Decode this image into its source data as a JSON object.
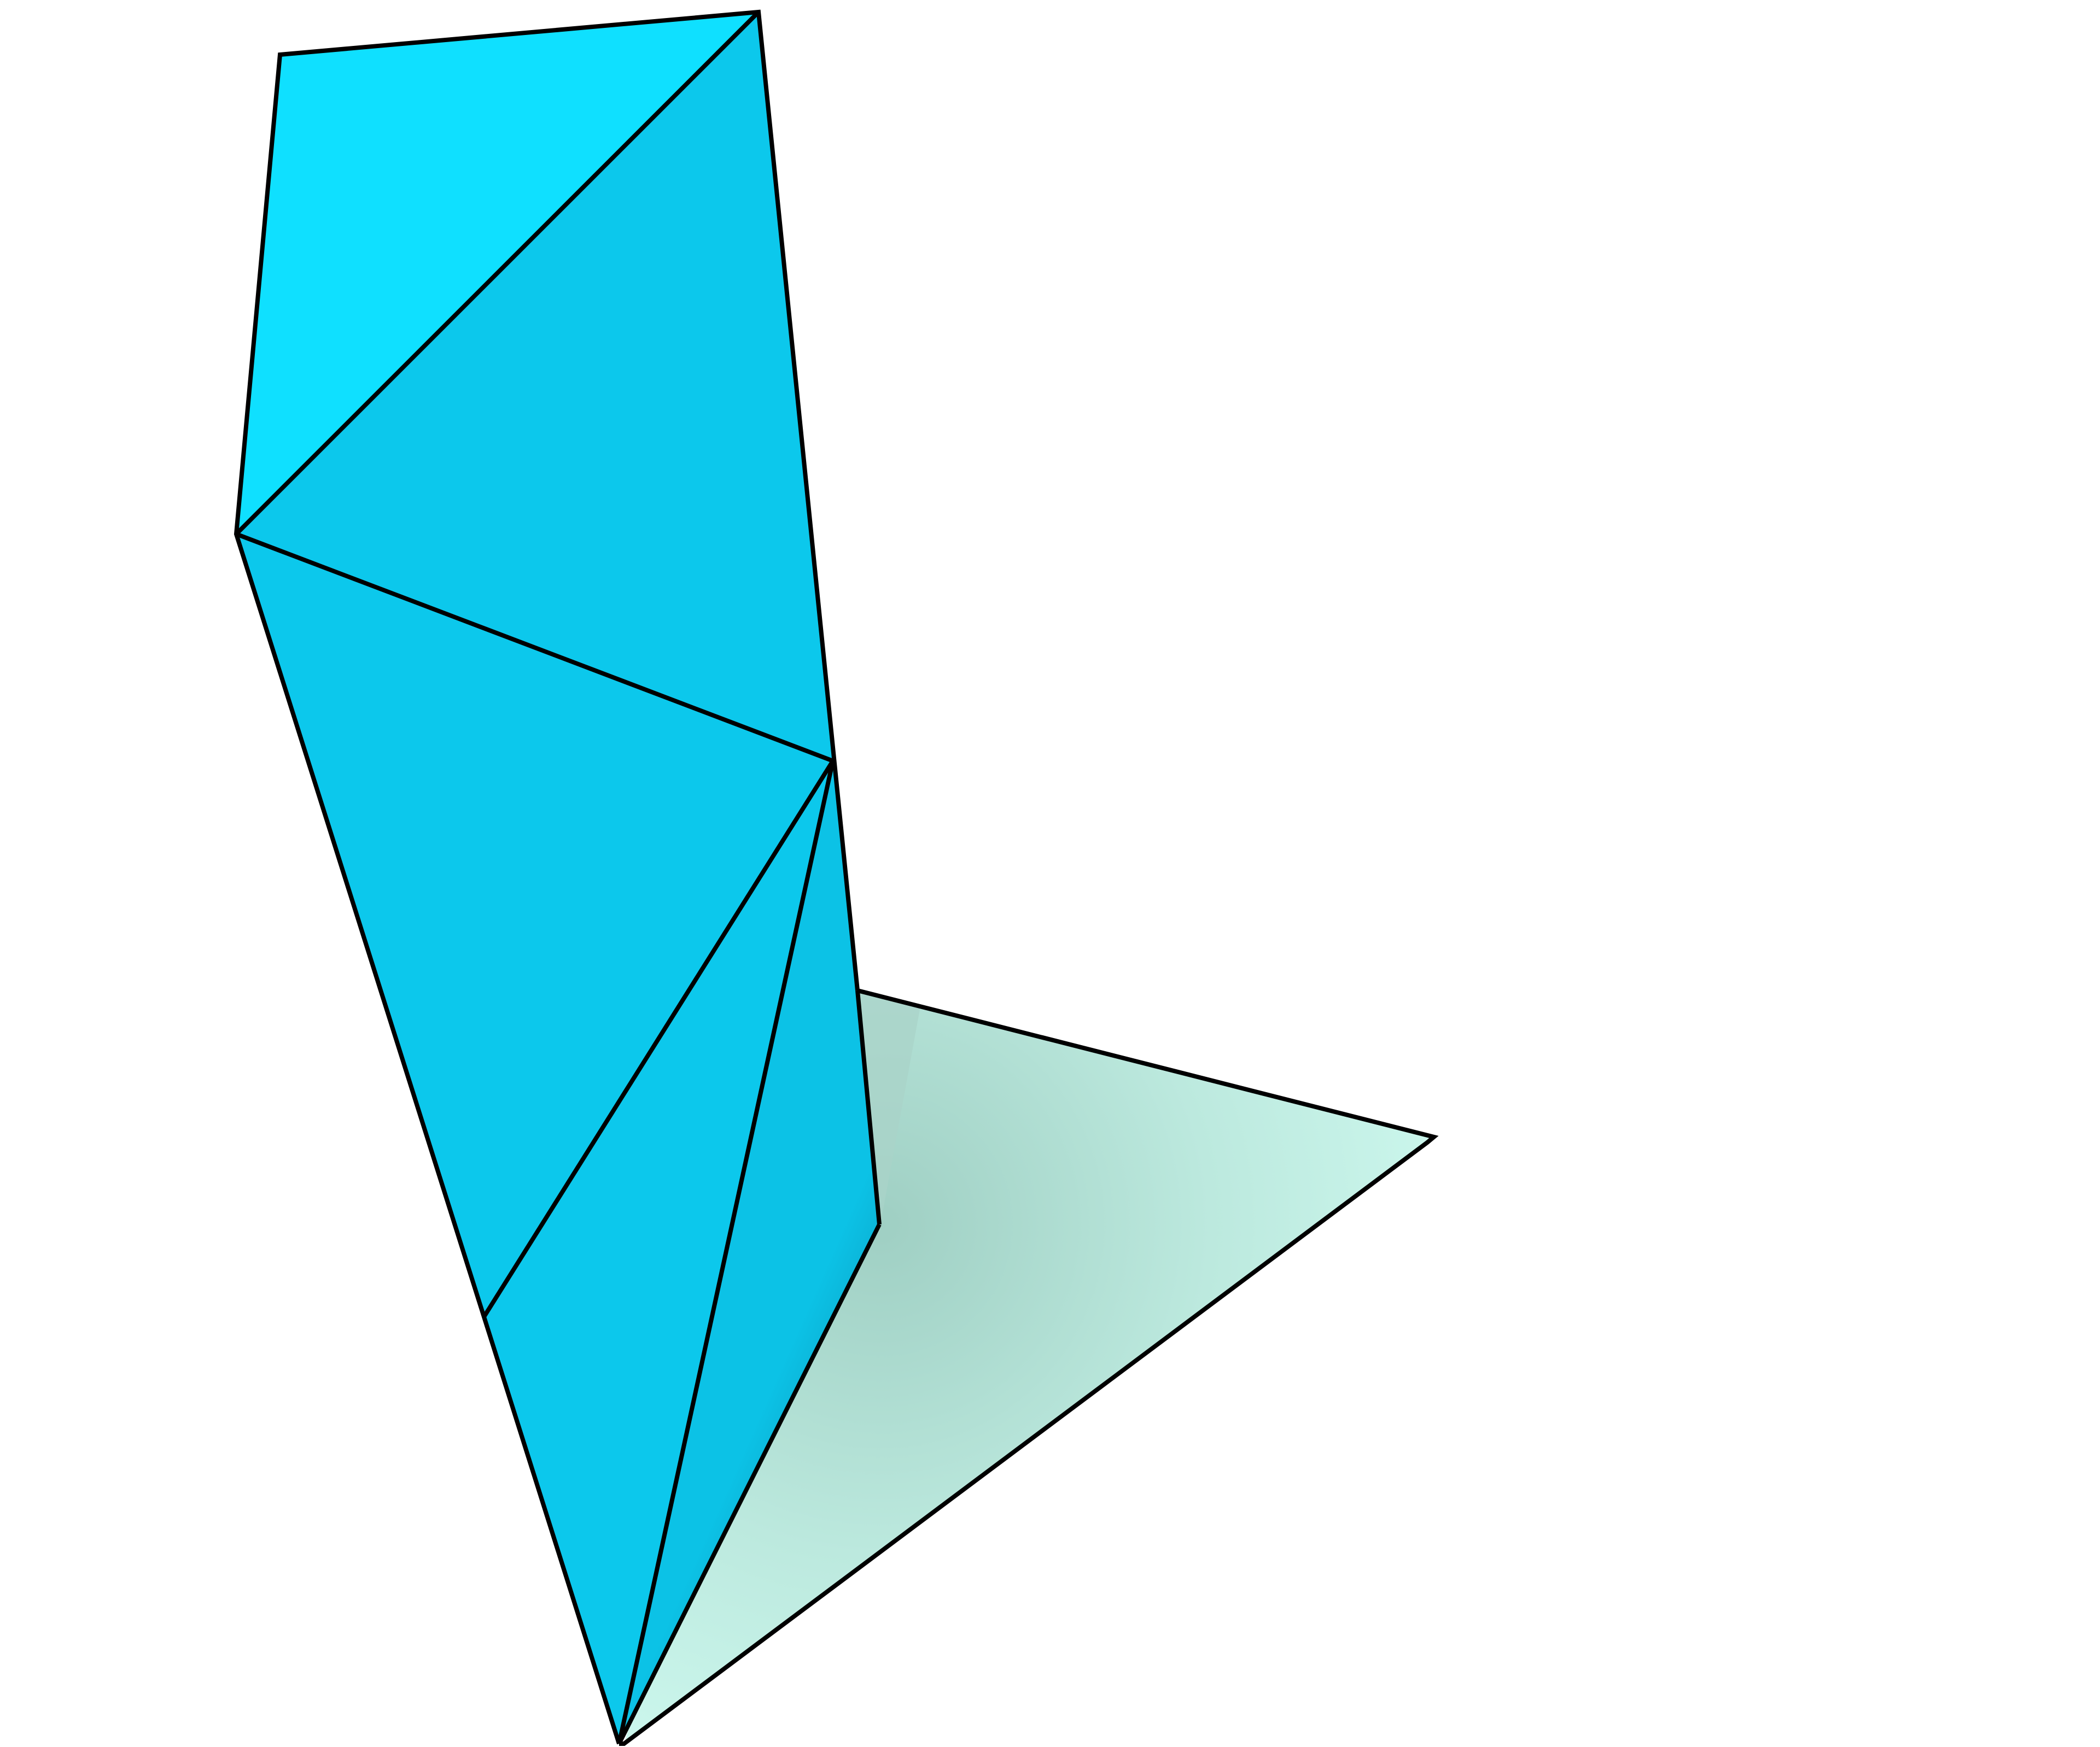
{
  "figure": {
    "kind": "3d-polyhedral-net-rendering",
    "faces": [
      {
        "name": "top-triangle",
        "color": "#0fe0ff"
      },
      {
        "name": "upper-triangle",
        "color": "#0cc8ec"
      },
      {
        "name": "middle-triangle",
        "color": "#0cc8ec"
      },
      {
        "name": "lower-left-triangle",
        "color": "#0cc8ec"
      },
      {
        "name": "lower-mid-triangle",
        "color": "#0cc8ec"
      },
      {
        "name": "lower-right-triangle",
        "color": "#0bbfe3"
      },
      {
        "name": "mint-triangle-face",
        "color": "#c8f5ea"
      }
    ],
    "colors": {
      "edge": "#000000",
      "background": "#ffffff",
      "cyan_light": "#0fe0ff",
      "cyan": "#0cc8ec",
      "cyan_shadow": "#0b8fae",
      "mint": "#c8f5ea",
      "mint_shadow": "#a6d5c9"
    }
  }
}
